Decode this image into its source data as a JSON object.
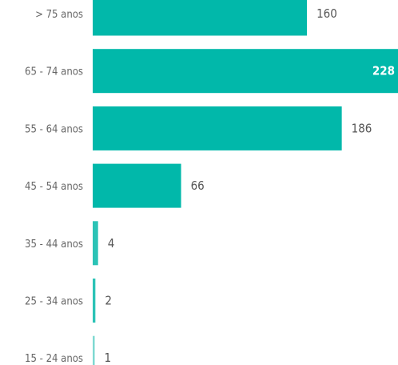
{
  "chart_data": {
    "type": "bar",
    "orientation": "horizontal",
    "categories": [
      "> 75 anos",
      "65 - 74 anos",
      "55 - 64 anos",
      "45 - 54 anos",
      "35 - 44 anos",
      "25 - 34 anos",
      "15 - 24 anos"
    ],
    "values": [
      160,
      228,
      186,
      66,
      4,
      2,
      1
    ],
    "xlim": [
      0,
      228
    ],
    "grid": false,
    "legend": "none",
    "colors": {
      "bar": "#01B8AA",
      "bar_small": "#2BC3B6",
      "bar_tiny": "#7FD9D1"
    }
  }
}
